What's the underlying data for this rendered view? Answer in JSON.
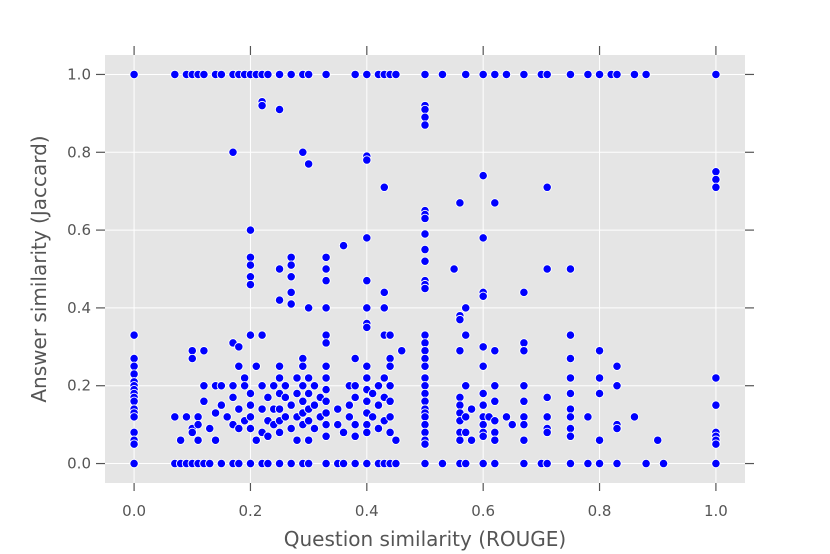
{
  "chart_data": {
    "type": "scatter",
    "xlabel": "Question similarity (ROUGE)",
    "ylabel": "Answer similarity (Jaccard)",
    "xlim": [
      -0.05,
      1.05
    ],
    "ylim": [
      -0.05,
      1.05
    ],
    "x_ticks": [
      0.0,
      0.2,
      0.4,
      0.6,
      0.8,
      1.0
    ],
    "y_ticks": [
      0.0,
      0.2,
      0.4,
      0.6,
      0.8,
      1.0
    ],
    "x_tick_labels": [
      "0.0",
      "0.2",
      "0.4",
      "0.6",
      "0.8",
      "1.0"
    ],
    "y_tick_labels": [
      "0.0",
      "0.2",
      "0.4",
      "0.6",
      "0.8",
      "1.0"
    ],
    "grid": true,
    "background_color": "#e5e5e5",
    "grid_color": "#ffffff",
    "marker_color": "#0000ff",
    "marker_edge_color": "#ffffff",
    "points": [
      [
        0.0,
        1.0
      ],
      [
        0.07,
        1.0
      ],
      [
        0.09,
        1.0
      ],
      [
        0.1,
        1.0
      ],
      [
        0.11,
        1.0
      ],
      [
        0.12,
        1.0
      ],
      [
        0.14,
        1.0
      ],
      [
        0.15,
        1.0
      ],
      [
        0.17,
        1.0
      ],
      [
        0.18,
        1.0
      ],
      [
        0.19,
        1.0
      ],
      [
        0.2,
        1.0
      ],
      [
        0.21,
        1.0
      ],
      [
        0.22,
        1.0
      ],
      [
        0.23,
        1.0
      ],
      [
        0.25,
        1.0
      ],
      [
        0.27,
        1.0
      ],
      [
        0.29,
        1.0
      ],
      [
        0.3,
        1.0
      ],
      [
        0.33,
        1.0
      ],
      [
        0.38,
        1.0
      ],
      [
        0.4,
        1.0
      ],
      [
        0.42,
        1.0
      ],
      [
        0.43,
        1.0
      ],
      [
        0.44,
        1.0
      ],
      [
        0.45,
        1.0
      ],
      [
        0.5,
        1.0
      ],
      [
        0.53,
        1.0
      ],
      [
        0.57,
        1.0
      ],
      [
        0.6,
        1.0
      ],
      [
        0.62,
        1.0
      ],
      [
        0.64,
        1.0
      ],
      [
        0.67,
        1.0
      ],
      [
        0.7,
        1.0
      ],
      [
        0.71,
        1.0
      ],
      [
        0.75,
        1.0
      ],
      [
        0.78,
        1.0
      ],
      [
        0.8,
        1.0
      ],
      [
        0.82,
        1.0
      ],
      [
        0.83,
        1.0
      ],
      [
        0.86,
        1.0
      ],
      [
        0.88,
        1.0
      ],
      [
        1.0,
        1.0
      ],
      [
        0.22,
        0.93
      ],
      [
        0.22,
        0.92
      ],
      [
        0.25,
        0.91
      ],
      [
        0.5,
        0.92
      ],
      [
        0.5,
        0.91
      ],
      [
        0.5,
        0.89
      ],
      [
        0.5,
        0.87
      ],
      [
        0.17,
        0.8
      ],
      [
        0.29,
        0.8
      ],
      [
        0.3,
        0.77
      ],
      [
        0.4,
        0.79
      ],
      [
        0.4,
        0.78
      ],
      [
        0.43,
        0.71
      ],
      [
        0.6,
        0.74
      ],
      [
        0.71,
        0.71
      ],
      [
        1.0,
        0.75
      ],
      [
        1.0,
        0.73
      ],
      [
        1.0,
        0.71
      ],
      [
        0.5,
        0.65
      ],
      [
        0.5,
        0.64
      ],
      [
        0.5,
        0.63
      ],
      [
        0.56,
        0.67
      ],
      [
        0.62,
        0.67
      ],
      [
        0.5,
        0.59
      ],
      [
        0.6,
        0.58
      ],
      [
        0.4,
        0.58
      ],
      [
        0.2,
        0.6
      ],
      [
        0.36,
        0.56
      ],
      [
        0.5,
        0.55
      ],
      [
        0.2,
        0.53
      ],
      [
        0.2,
        0.51
      ],
      [
        0.27,
        0.53
      ],
      [
        0.27,
        0.51
      ],
      [
        0.33,
        0.53
      ],
      [
        0.33,
        0.5
      ],
      [
        0.25,
        0.5
      ],
      [
        0.5,
        0.52
      ],
      [
        0.55,
        0.5
      ],
      [
        0.71,
        0.5
      ],
      [
        0.75,
        0.5
      ],
      [
        0.2,
        0.48
      ],
      [
        0.2,
        0.46
      ],
      [
        0.27,
        0.48
      ],
      [
        0.33,
        0.47
      ],
      [
        0.4,
        0.47
      ],
      [
        0.5,
        0.47
      ],
      [
        0.5,
        0.46
      ],
      [
        0.5,
        0.45
      ],
      [
        0.6,
        0.44
      ],
      [
        0.6,
        0.43
      ],
      [
        0.67,
        0.44
      ],
      [
        0.27,
        0.44
      ],
      [
        0.43,
        0.44
      ],
      [
        0.25,
        0.42
      ],
      [
        0.27,
        0.41
      ],
      [
        0.3,
        0.4
      ],
      [
        0.33,
        0.4
      ],
      [
        0.4,
        0.4
      ],
      [
        0.43,
        0.4
      ],
      [
        0.57,
        0.4
      ],
      [
        0.56,
        0.38
      ],
      [
        0.56,
        0.37
      ],
      [
        0.4,
        0.36
      ],
      [
        0.4,
        0.35
      ],
      [
        0.0,
        0.33
      ],
      [
        0.2,
        0.33
      ],
      [
        0.22,
        0.33
      ],
      [
        0.33,
        0.33
      ],
      [
        0.43,
        0.33
      ],
      [
        0.44,
        0.33
      ],
      [
        0.5,
        0.33
      ],
      [
        0.57,
        0.33
      ],
      [
        0.75,
        0.33
      ],
      [
        0.17,
        0.31
      ],
      [
        0.18,
        0.3
      ],
      [
        0.5,
        0.31
      ],
      [
        0.6,
        0.3
      ],
      [
        0.67,
        0.31
      ],
      [
        0.67,
        0.29
      ],
      [
        0.56,
        0.29
      ],
      [
        0.62,
        0.29
      ],
      [
        0.8,
        0.29
      ],
      [
        0.46,
        0.29
      ],
      [
        0.33,
        0.31
      ],
      [
        0.1,
        0.29
      ],
      [
        0.12,
        0.29
      ],
      [
        0.1,
        0.27
      ],
      [
        0.0,
        0.27
      ],
      [
        0.29,
        0.27
      ],
      [
        0.38,
        0.27
      ],
      [
        0.44,
        0.27
      ],
      [
        0.75,
        0.27
      ],
      [
        0.0,
        0.25
      ],
      [
        0.0,
        0.23
      ],
      [
        0.0,
        0.21
      ],
      [
        0.0,
        0.2
      ],
      [
        0.0,
        0.19
      ],
      [
        0.0,
        0.18
      ],
      [
        0.0,
        0.17
      ],
      [
        0.0,
        0.16
      ],
      [
        0.0,
        0.14
      ],
      [
        0.0,
        0.13
      ],
      [
        0.0,
        0.12
      ],
      [
        0.0,
        0.08
      ],
      [
        0.0,
        0.06
      ],
      [
        0.0,
        0.05
      ],
      [
        0.0,
        0.0
      ],
      [
        0.07,
        0.12
      ],
      [
        0.08,
        0.06
      ],
      [
        0.09,
        0.12
      ],
      [
        0.1,
        0.09
      ],
      [
        0.1,
        0.08
      ],
      [
        0.11,
        0.12
      ],
      [
        0.11,
        0.1
      ],
      [
        0.11,
        0.06
      ],
      [
        0.12,
        0.2
      ],
      [
        0.12,
        0.16
      ],
      [
        0.13,
        0.09
      ],
      [
        0.14,
        0.2
      ],
      [
        0.14,
        0.13
      ],
      [
        0.14,
        0.06
      ],
      [
        0.15,
        0.2
      ],
      [
        0.15,
        0.15
      ],
      [
        0.16,
        0.12
      ],
      [
        0.17,
        0.2
      ],
      [
        0.17,
        0.17
      ],
      [
        0.17,
        0.1
      ],
      [
        0.18,
        0.25
      ],
      [
        0.18,
        0.14
      ],
      [
        0.18,
        0.09
      ],
      [
        0.19,
        0.22
      ],
      [
        0.19,
        0.2
      ],
      [
        0.19,
        0.11
      ],
      [
        0.2,
        0.18
      ],
      [
        0.2,
        0.15
      ],
      [
        0.2,
        0.12
      ],
      [
        0.2,
        0.09
      ],
      [
        0.21,
        0.25
      ],
      [
        0.21,
        0.06
      ],
      [
        0.22,
        0.2
      ],
      [
        0.22,
        0.14
      ],
      [
        0.22,
        0.08
      ],
      [
        0.23,
        0.17
      ],
      [
        0.23,
        0.11
      ],
      [
        0.23,
        0.07
      ],
      [
        0.24,
        0.2
      ],
      [
        0.24,
        0.14
      ],
      [
        0.24,
        0.1
      ],
      [
        0.25,
        0.25
      ],
      [
        0.25,
        0.22
      ],
      [
        0.25,
        0.18
      ],
      [
        0.25,
        0.14
      ],
      [
        0.25,
        0.11
      ],
      [
        0.25,
        0.08
      ],
      [
        0.26,
        0.2
      ],
      [
        0.26,
        0.17
      ],
      [
        0.26,
        0.12
      ],
      [
        0.27,
        0.15
      ],
      [
        0.27,
        0.09
      ],
      [
        0.28,
        0.22
      ],
      [
        0.28,
        0.18
      ],
      [
        0.28,
        0.12
      ],
      [
        0.28,
        0.06
      ],
      [
        0.29,
        0.25
      ],
      [
        0.29,
        0.2
      ],
      [
        0.29,
        0.16
      ],
      [
        0.29,
        0.13
      ],
      [
        0.29,
        0.1
      ],
      [
        0.3,
        0.22
      ],
      [
        0.3,
        0.18
      ],
      [
        0.3,
        0.14
      ],
      [
        0.3,
        0.11
      ],
      [
        0.3,
        0.06
      ],
      [
        0.31,
        0.2
      ],
      [
        0.31,
        0.15
      ],
      [
        0.31,
        0.09
      ],
      [
        0.32,
        0.17
      ],
      [
        0.32,
        0.12
      ],
      [
        0.33,
        0.25
      ],
      [
        0.33,
        0.22
      ],
      [
        0.33,
        0.19
      ],
      [
        0.33,
        0.16
      ],
      [
        0.33,
        0.13
      ],
      [
        0.33,
        0.1
      ],
      [
        0.33,
        0.07
      ],
      [
        0.35,
        0.14
      ],
      [
        0.35,
        0.1
      ],
      [
        0.36,
        0.08
      ],
      [
        0.37,
        0.2
      ],
      [
        0.37,
        0.15
      ],
      [
        0.37,
        0.12
      ],
      [
        0.38,
        0.2
      ],
      [
        0.38,
        0.17
      ],
      [
        0.38,
        0.1
      ],
      [
        0.38,
        0.07
      ],
      [
        0.4,
        0.25
      ],
      [
        0.4,
        0.22
      ],
      [
        0.4,
        0.19
      ],
      [
        0.4,
        0.16
      ],
      [
        0.4,
        0.13
      ],
      [
        0.4,
        0.1
      ],
      [
        0.4,
        0.08
      ],
      [
        0.41,
        0.18
      ],
      [
        0.41,
        0.12
      ],
      [
        0.42,
        0.2
      ],
      [
        0.42,
        0.15
      ],
      [
        0.42,
        0.09
      ],
      [
        0.43,
        0.22
      ],
      [
        0.43,
        0.17
      ],
      [
        0.43,
        0.11
      ],
      [
        0.44,
        0.25
      ],
      [
        0.44,
        0.2
      ],
      [
        0.44,
        0.16
      ],
      [
        0.44,
        0.12
      ],
      [
        0.44,
        0.08
      ],
      [
        0.45,
        0.06
      ],
      [
        0.5,
        0.29
      ],
      [
        0.5,
        0.27
      ],
      [
        0.5,
        0.25
      ],
      [
        0.5,
        0.22
      ],
      [
        0.5,
        0.2
      ],
      [
        0.5,
        0.18
      ],
      [
        0.5,
        0.16
      ],
      [
        0.5,
        0.14
      ],
      [
        0.5,
        0.13
      ],
      [
        0.5,
        0.12
      ],
      [
        0.5,
        0.1
      ],
      [
        0.5,
        0.08
      ],
      [
        0.5,
        0.06
      ],
      [
        0.5,
        0.05
      ],
      [
        0.56,
        0.17
      ],
      [
        0.56,
        0.15
      ],
      [
        0.56,
        0.13
      ],
      [
        0.56,
        0.11
      ],
      [
        0.56,
        0.08
      ],
      [
        0.56,
        0.06
      ],
      [
        0.57,
        0.2
      ],
      [
        0.57,
        0.12
      ],
      [
        0.57,
        0.08
      ],
      [
        0.58,
        0.14
      ],
      [
        0.58,
        0.06
      ],
      [
        0.6,
        0.25
      ],
      [
        0.6,
        0.18
      ],
      [
        0.6,
        0.15
      ],
      [
        0.6,
        0.12
      ],
      [
        0.6,
        0.1
      ],
      [
        0.6,
        0.08
      ],
      [
        0.6,
        0.07
      ],
      [
        0.61,
        0.12
      ],
      [
        0.62,
        0.2
      ],
      [
        0.62,
        0.16
      ],
      [
        0.62,
        0.11
      ],
      [
        0.62,
        0.08
      ],
      [
        0.62,
        0.06
      ],
      [
        0.64,
        0.12
      ],
      [
        0.65,
        0.1
      ],
      [
        0.67,
        0.2
      ],
      [
        0.67,
        0.16
      ],
      [
        0.67,
        0.12
      ],
      [
        0.67,
        0.1
      ],
      [
        0.67,
        0.06
      ],
      [
        0.71,
        0.17
      ],
      [
        0.71,
        0.12
      ],
      [
        0.71,
        0.09
      ],
      [
        0.71,
        0.08
      ],
      [
        0.75,
        0.22
      ],
      [
        0.75,
        0.18
      ],
      [
        0.75,
        0.14
      ],
      [
        0.75,
        0.12
      ],
      [
        0.75,
        0.09
      ],
      [
        0.75,
        0.07
      ],
      [
        0.78,
        0.12
      ],
      [
        0.8,
        0.22
      ],
      [
        0.8,
        0.18
      ],
      [
        0.8,
        0.06
      ],
      [
        0.83,
        0.25
      ],
      [
        0.83,
        0.2
      ],
      [
        0.83,
        0.1
      ],
      [
        0.83,
        0.09
      ],
      [
        0.86,
        0.12
      ],
      [
        0.9,
        0.06
      ],
      [
        1.0,
        0.22
      ],
      [
        1.0,
        0.15
      ],
      [
        1.0,
        0.08
      ],
      [
        1.0,
        0.07
      ],
      [
        1.0,
        0.06
      ],
      [
        1.0,
        0.05
      ],
      [
        0.07,
        0.0
      ],
      [
        0.08,
        0.0
      ],
      [
        0.09,
        0.0
      ],
      [
        0.1,
        0.0
      ],
      [
        0.11,
        0.0
      ],
      [
        0.12,
        0.0
      ],
      [
        0.13,
        0.0
      ],
      [
        0.15,
        0.0
      ],
      [
        0.17,
        0.0
      ],
      [
        0.18,
        0.0
      ],
      [
        0.2,
        0.0
      ],
      [
        0.22,
        0.0
      ],
      [
        0.23,
        0.0
      ],
      [
        0.25,
        0.0
      ],
      [
        0.27,
        0.0
      ],
      [
        0.29,
        0.0
      ],
      [
        0.3,
        0.0
      ],
      [
        0.33,
        0.0
      ],
      [
        0.35,
        0.0
      ],
      [
        0.36,
        0.0
      ],
      [
        0.38,
        0.0
      ],
      [
        0.4,
        0.0
      ],
      [
        0.42,
        0.0
      ],
      [
        0.43,
        0.0
      ],
      [
        0.44,
        0.0
      ],
      [
        0.45,
        0.0
      ],
      [
        0.5,
        0.0
      ],
      [
        0.53,
        0.0
      ],
      [
        0.56,
        0.0
      ],
      [
        0.57,
        0.0
      ],
      [
        0.6,
        0.0
      ],
      [
        0.62,
        0.0
      ],
      [
        0.67,
        0.0
      ],
      [
        0.7,
        0.0
      ],
      [
        0.71,
        0.0
      ],
      [
        0.75,
        0.0
      ],
      [
        0.78,
        0.0
      ],
      [
        0.8,
        0.0
      ],
      [
        0.83,
        0.0
      ],
      [
        0.88,
        0.0
      ],
      [
        0.91,
        0.0
      ],
      [
        1.0,
        0.0
      ]
    ]
  }
}
